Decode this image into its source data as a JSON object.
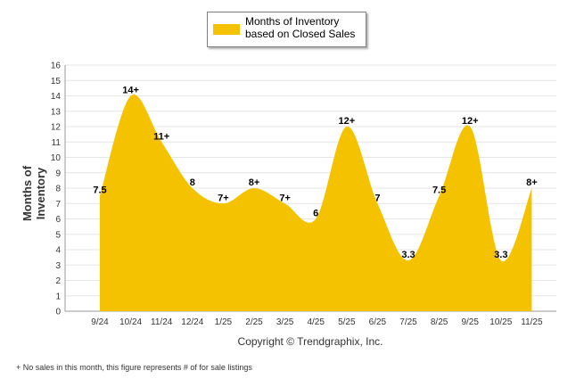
{
  "chart_data": {
    "type": "area",
    "series_name": "Months of Inventory based on Closed Sales",
    "ylabel": "Months of Inventory",
    "xlabel": "",
    "ylim": [
      0,
      16
    ],
    "yticks": [
      0,
      1,
      2,
      3,
      4,
      5,
      6,
      7,
      8,
      9,
      10,
      11,
      12,
      13,
      14,
      15,
      16
    ],
    "grid": true,
    "legend_position": "top-center",
    "categories": [
      "9/24",
      "10/24",
      "11/24",
      "12/24",
      "1/25",
      "2/25",
      "3/25",
      "4/25",
      "5/25",
      "6/25",
      "7/25",
      "8/25",
      "9/25",
      "10/25",
      "11/25"
    ],
    "values": [
      7.5,
      14,
      11,
      8,
      7,
      8,
      7,
      6,
      12,
      7,
      3.3,
      7.5,
      12,
      3.3,
      8
    ],
    "data_labels": [
      "7.5",
      "14+",
      "11+",
      "8",
      "7+",
      "8+",
      "7+",
      "6",
      "12+",
      "7",
      "3.3",
      "7.5",
      "12+",
      "3.3",
      "8+"
    ],
    "color": "#f5c200"
  },
  "copyright": "Copyright © Trendgraphix, Inc.",
  "footnote": "+ No sales in this month, this figure represents # of for sale listings"
}
